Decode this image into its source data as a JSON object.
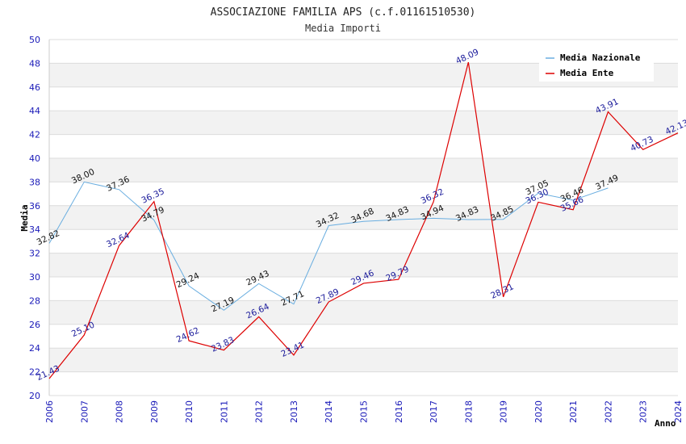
{
  "chart_data": {
    "type": "line",
    "title": "ASSOCIAZIONE FAMILIA APS (c.f.01161510530)",
    "subtitle": "Media Importi",
    "xlabel": "Anno",
    "ylabel": "Media",
    "ylim": [
      20,
      50
    ],
    "yticks": [
      20,
      22,
      24,
      26,
      28,
      30,
      32,
      34,
      36,
      38,
      40,
      42,
      44,
      46,
      48,
      50
    ],
    "categories": [
      "2006",
      "2007",
      "2008",
      "2009",
      "2010",
      "2011",
      "2012",
      "2013",
      "2014",
      "2015",
      "2016",
      "2017",
      "2018",
      "2019",
      "2020",
      "2021",
      "2022",
      "2023",
      "2024"
    ],
    "series": [
      {
        "name": "Media Nazionale",
        "color": "#6aaee0",
        "values": [
          32.82,
          38.0,
          37.36,
          34.79,
          29.24,
          27.19,
          29.43,
          27.71,
          34.32,
          34.68,
          34.83,
          34.94,
          34.83,
          34.85,
          37.05,
          36.46,
          37.49,
          null,
          null
        ],
        "labels": [
          "32.82",
          "38.00",
          "37.36",
          "34.79",
          "29.24",
          "27.19",
          "29.43",
          "27.71",
          "34.32",
          "34.68",
          "34.83",
          "34.94",
          "34.83",
          "34.85",
          "37.05",
          "36.46",
          "37.49",
          "",
          ""
        ]
      },
      {
        "name": "Media Ente",
        "color": "#dd0000",
        "values": [
          21.43,
          25.1,
          32.64,
          36.35,
          24.62,
          23.83,
          26.64,
          23.41,
          27.89,
          29.46,
          29.79,
          36.32,
          48.09,
          28.31,
          36.3,
          35.66,
          43.91,
          40.73,
          42.13
        ],
        "labels": [
          "21.43",
          "25.10",
          "32.64",
          "36.35",
          "24.62",
          "23.83",
          "26.64",
          "23.41",
          "27.89",
          "29.46",
          "29.79",
          "36.32",
          "48.09",
          "28.31",
          "36.30",
          "35.66",
          "43.91",
          "40.73",
          "42.13"
        ]
      }
    ],
    "grid": true,
    "legend": "top-right"
  }
}
